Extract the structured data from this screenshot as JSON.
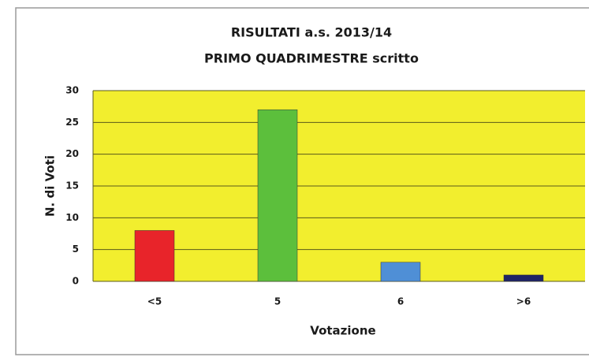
{
  "chart_data": {
    "type": "bar",
    "title": "RISULTATI a.s. 2013/14",
    "subtitle": "PRIMO QUADRIMESTRE scritto",
    "xlabel": "Votazione",
    "ylabel": "N. di Voti",
    "categories": [
      "<5",
      "5",
      "6",
      ">6"
    ],
    "values": [
      8,
      27,
      3,
      1
    ],
    "colors": [
      "#e8242a",
      "#5cbf3c",
      "#4f8fd6",
      "#1f2466"
    ],
    "ylim": [
      0,
      30
    ],
    "yticks": [
      0,
      5,
      10,
      15,
      20,
      25,
      30
    ],
    "grid": true,
    "plot_background": "#f2ee2e"
  }
}
